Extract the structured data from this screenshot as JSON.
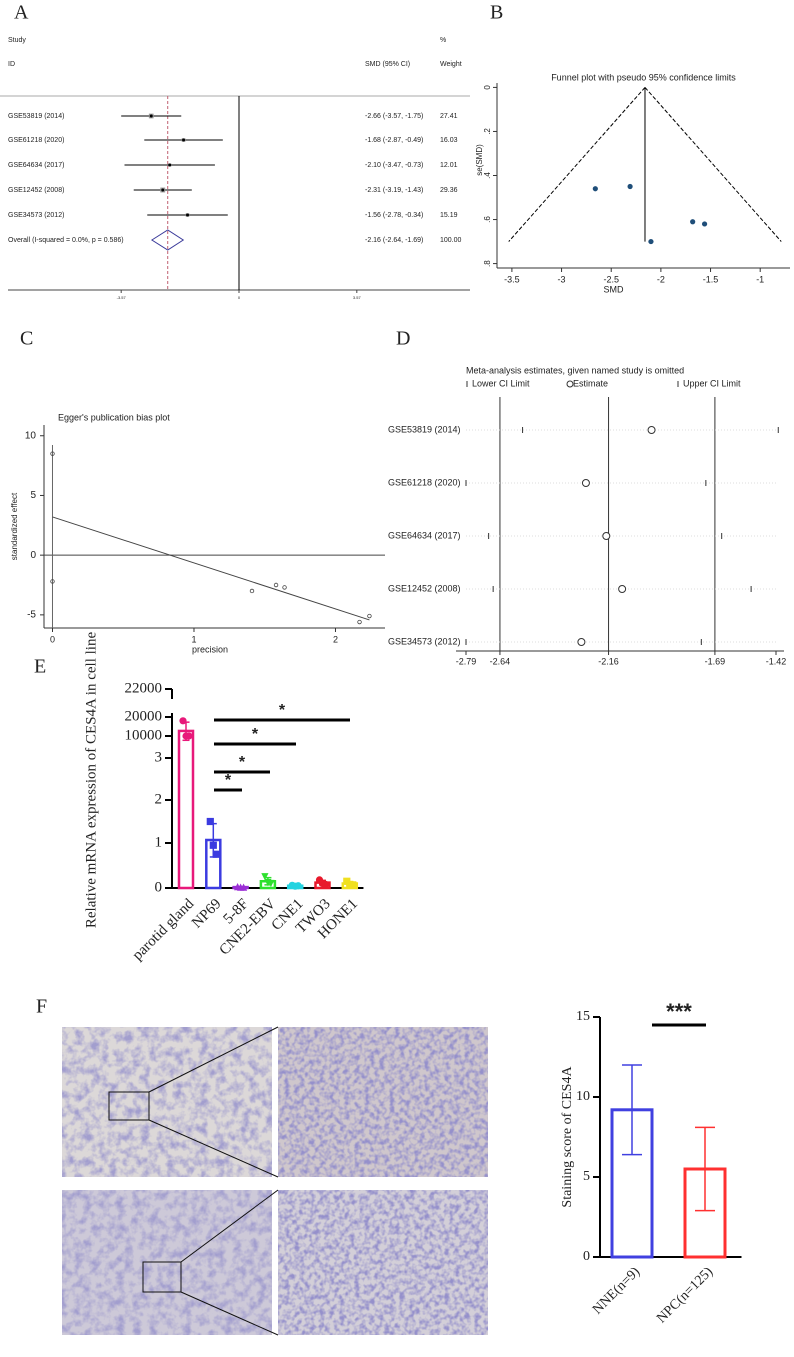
{
  "panels": [
    "A",
    "B",
    "C",
    "D",
    "E",
    "F"
  ],
  "chart_data": [
    {
      "type": "forest",
      "header": {
        "study": "Study",
        "id": "ID",
        "effect": "SMD (95% CI)",
        "pct": "%",
        "weight": "Weight"
      },
      "studies": [
        "GSE53819 (2014)",
        "GSE61218 (2020)",
        "GSE64634 (2017)",
        "GSE12452 (2008)",
        "GSE34573 (2012)"
      ],
      "values": [
        -2.66,
        -1.68,
        -2.1,
        -2.31,
        -1.56
      ],
      "lower": [
        -3.57,
        -2.87,
        -3.47,
        -3.19,
        -2.78
      ],
      "upper": [
        -1.75,
        -0.49,
        -0.73,
        -1.43,
        -0.34
      ],
      "value_labels": [
        "-2.66 (-3.57, -1.75)",
        "-1.68 (-2.87, -0.49)",
        "-2.10 (-3.47, -0.73)",
        "-2.31 (-3.19, -1.43)",
        "-1.56 (-2.78, -0.34)"
      ],
      "weights": [
        27.41,
        16.03,
        12.01,
        29.36,
        15.19
      ],
      "overall": {
        "label": "Overall  (I-squared = 0.0%, p = 0.586)",
        "value": -2.16,
        "lower": -2.64,
        "upper": -1.69,
        "value_label": "-2.16 (-2.64, -1.69)",
        "weight": 100,
        "weight_label": "100.00"
      },
      "xlim": [
        -7,
        7
      ],
      "xticks": [
        -3.57,
        0,
        3.57
      ]
    },
    {
      "type": "funnel",
      "title": "Funnel plot with pseudo 95% confidence limits",
      "xlabel": "SMD",
      "ylabel": "se(SMD)",
      "x": [
        -2.66,
        -2.31,
        -1.68,
        -1.56,
        -2.1
      ],
      "y": [
        0.46,
        0.45,
        0.61,
        0.62,
        0.7
      ],
      "pooled": -2.16,
      "color": "#1f4e79",
      "y_reversed": true,
      "xlim": [
        -3.65,
        -0.7
      ],
      "ylim": [
        -0.02,
        0.82
      ],
      "xticks": [
        -3.5,
        -3,
        -2.5,
        -2,
        -1.5,
        -1
      ],
      "yticks": [
        0,
        {
          "value": 0.2,
          "label": ".2"
        },
        {
          "value": 0.4,
          "label": ".4"
        },
        {
          "value": 0.6,
          "label": ".6"
        },
        {
          "value": 0.8,
          "label": ".8"
        }
      ]
    },
    {
      "type": "scatter",
      "title": "Egger's publication bias plot",
      "xlabel": "precision",
      "ylabel": "standardized effect",
      "x": [
        0,
        0,
        1.41,
        1.58,
        1.64,
        2.17,
        2.24
      ],
      "y": [
        8.5,
        -2.2,
        -3.0,
        -2.5,
        -2.7,
        -5.6,
        -5.1
      ],
      "fit": {
        "intercept": 3.2,
        "slope": -3.85
      },
      "xlim": [
        -0.06,
        2.35
      ],
      "ylim": [
        -6.1,
        10.9
      ],
      "xticks": [
        0,
        1,
        2
      ],
      "yticks": [
        -5,
        0,
        5,
        10
      ]
    },
    {
      "type": "influence",
      "title": "Meta-analysis estimates, given named study is omitted",
      "legend": [
        "Lower CI Limit",
        "Estimate",
        "Upper CI Limit"
      ],
      "studies": [
        "GSE53819 (2014)",
        "GSE61218 (2020)",
        "GSE64634 (2017)",
        "GSE12452 (2008)",
        "GSE34573 (2012)"
      ],
      "estimate": [
        -1.97,
        -2.26,
        -2.17,
        -2.1,
        -2.28
      ],
      "lower": [
        -2.54,
        -2.79,
        -2.69,
        -2.67,
        -2.79
      ],
      "upper": [
        -1.41,
        -1.73,
        -1.66,
        -1.53,
        -1.75
      ],
      "xlim": [
        -2.79,
        -1.42
      ],
      "xticks": [
        -2.79,
        -2.64,
        -2.16,
        -1.69,
        -1.42
      ]
    },
    {
      "type": "bar",
      "ylabel": "Relative mRNA expression of CES4A in cell line",
      "categories": [
        "parotid gland",
        "NP69",
        "5-8F",
        "CNE2-EBV",
        "CNE1",
        "TWO3",
        "HONE1"
      ],
      "values": [
        12667,
        1.07,
        0.02,
        0.15,
        0.05,
        0.12,
        0.1
      ],
      "errors": [
        4619,
        0.38,
        0.01,
        0.08,
        0.01,
        0.05,
        0.04
      ],
      "points": [
        [
          18000,
          10000,
          10000
        ],
        [
          1.5,
          0.95,
          0.75
        ],
        [
          0.03,
          0.02,
          0.02
        ],
        [
          0.25,
          0.12,
          0.1
        ],
        [
          0.06,
          0.04,
          0.05
        ],
        [
          0.18,
          0.1,
          0.08
        ],
        [
          0.15,
          0.08,
          0.07
        ]
      ],
      "colors": [
        "#e8197a",
        "#3b3be0",
        "#9b2fd6",
        "#2ee02e",
        "#22d3e0",
        "#e8192c",
        "#f0e020"
      ],
      "markers": [
        "circle",
        "square",
        "triangle",
        "triangle-down",
        "circle",
        "circle",
        "square"
      ],
      "ylim": [
        0,
        22000
      ],
      "yticks": [
        0,
        1,
        2,
        3,
        10000,
        20000,
        22000
      ],
      "significance_labels": [
        "*",
        "*",
        "*",
        "*"
      ]
    },
    {
      "type": "bar",
      "ylabel": "Staining score of CES4A",
      "categories": [
        "NNE(n=9)",
        "NPC(n=125)"
      ],
      "values": [
        9.2,
        5.5
      ],
      "errors": [
        2.8,
        2.6
      ],
      "colors": [
        "#4040e0",
        "#ff3030"
      ],
      "ylim": [
        0,
        15
      ],
      "yticks": [
        0,
        5,
        10,
        15
      ],
      "significance_labels": [
        "***"
      ]
    }
  ]
}
